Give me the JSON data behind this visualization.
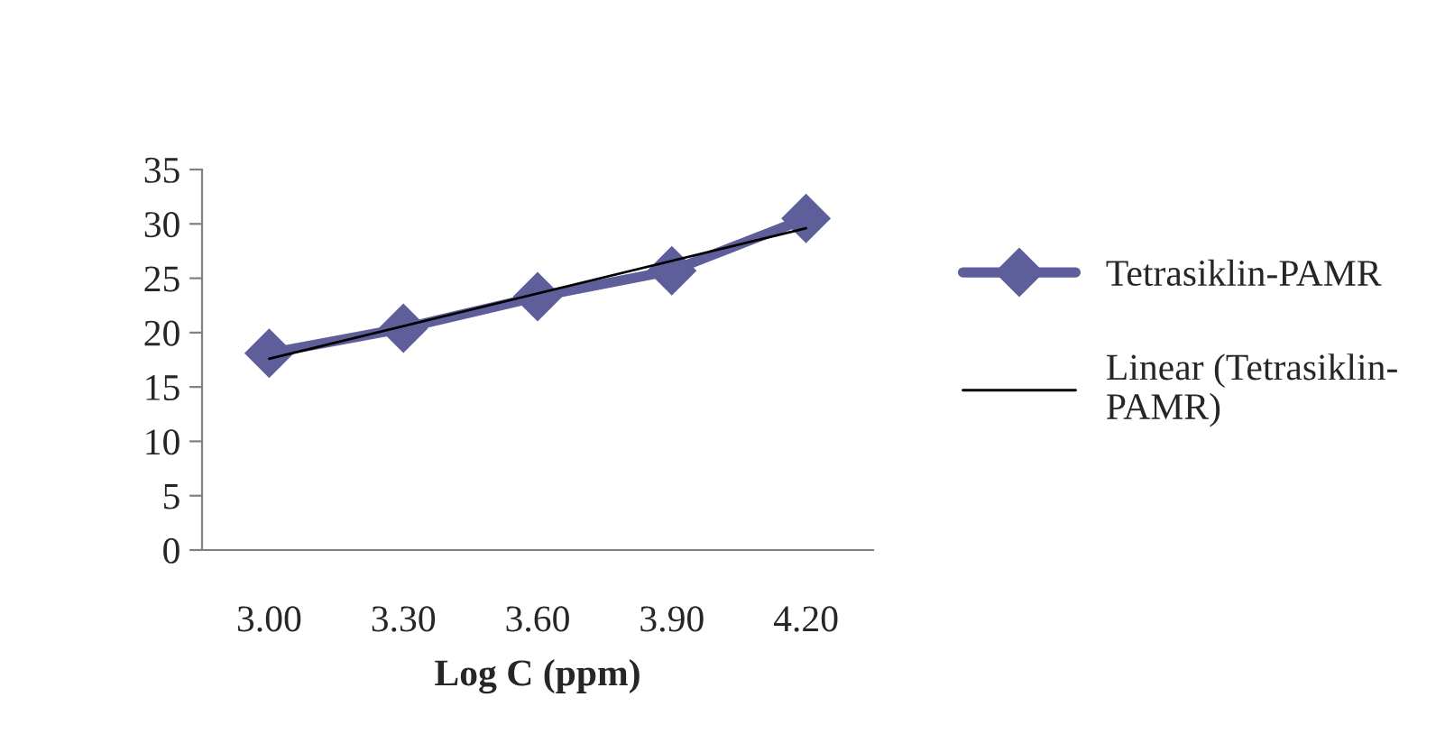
{
  "chart_data": {
    "type": "line",
    "xlabel": "Log C (ppm)",
    "categories": [
      "3.00",
      "3.30",
      "3.60",
      "3.90",
      "4.20"
    ],
    "series": [
      {
        "name": "Tetrasiklin-PAMR",
        "color": "#5e5e9a",
        "values": [
          18.1,
          20.4,
          23.3,
          25.7,
          30.5
        ],
        "marker": "diamond"
      },
      {
        "name": "Linear (Tetrasiklin-PAMR)",
        "color": "#000000",
        "type": "line",
        "x": [
          "3.00",
          "4.20"
        ],
        "values": [
          17.6,
          29.6
        ],
        "marker": "none"
      }
    ],
    "ylim": [
      0,
      35
    ],
    "yticks": [
      0,
      5,
      10,
      15,
      20,
      25,
      30,
      35
    ],
    "grid": false,
    "legend": "right"
  }
}
